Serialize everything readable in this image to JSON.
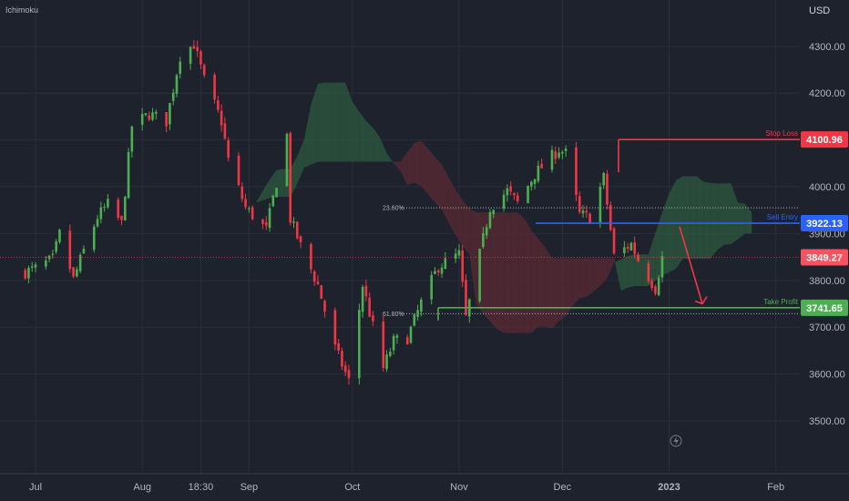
{
  "indicator": "Ichimoku",
  "currency": "USD",
  "colors": {
    "background": "#1e222d",
    "grid": "#2a2e39",
    "bull": "#4caf50",
    "bear": "#f23645",
    "cloud_bull": "#2e5a3e",
    "cloud_bear": "#5a2a33",
    "stop": "#f23645",
    "entry": "#2962ff",
    "target": "#4caf50",
    "current": "#f7525f"
  },
  "chart_data": {
    "type": "candlestick",
    "symbol_currency": "USD",
    "ylim": [
      3430,
      4360
    ],
    "y_ticks": [
      3500,
      3600,
      3700,
      3800,
      3900,
      4000,
      4100,
      4200,
      4300
    ],
    "y_tick_labels": [
      "3500.00",
      "3600.00",
      "3700.00",
      "3800.00",
      "3900.00",
      "4000.00",
      "4100.00",
      "4200.00",
      "4300.00"
    ],
    "x_labels": [
      "Jul",
      "Aug",
      "18:30",
      "Sep",
      "Oct",
      "Nov",
      "Dec",
      "2023",
      "Feb"
    ],
    "close_path": [
      [
        "Jun 28",
        3818
      ],
      [
        "Jul 1",
        3825
      ],
      [
        "Jul 6",
        3845
      ],
      [
        "Jul 8",
        3899
      ],
      [
        "Jul 12",
        3802
      ],
      [
        "Jul 15",
        3863
      ],
      [
        "Jul 19",
        3936
      ],
      [
        "Jul 22",
        3962
      ],
      [
        "Jul 26",
        3921
      ],
      [
        "Jul 29",
        4130
      ],
      [
        "Aug 3",
        4155
      ],
      [
        "Aug 8",
        4140
      ],
      [
        "Aug 12",
        4280
      ],
      [
        "Aug 16",
        4305
      ],
      [
        "Aug 19",
        4228
      ],
      [
        "Aug 24",
        4140
      ],
      [
        "Aug 26",
        4058
      ],
      [
        "Aug 31",
        3955
      ],
      [
        "Sep 6",
        3908
      ],
      [
        "Sep 12",
        4110
      ],
      [
        "Sep 13",
        3932
      ],
      [
        "Sep 16",
        3873
      ],
      [
        "Sep 21",
        3790
      ],
      [
        "Sep 26",
        3655
      ],
      [
        "Sep 30",
        3585
      ],
      [
        "Oct 4",
        3790
      ],
      [
        "Oct 10",
        3612
      ],
      [
        "Oct 13",
        3670
      ],
      [
        "Oct 17",
        3677
      ],
      [
        "Oct 21",
        3752
      ],
      [
        "Oct 26",
        3830
      ],
      [
        "Nov 1",
        3856
      ],
      [
        "Nov 3",
        3720
      ],
      [
        "Nov 10",
        3956
      ],
      [
        "Nov 15",
        3991
      ],
      [
        "Nov 18",
        3965
      ],
      [
        "Nov 23",
        4027
      ],
      [
        "Nov 30",
        4080
      ],
      [
        "Dec 2",
        4071
      ],
      [
        "Dec 6",
        3941
      ],
      [
        "Dec 9",
        3934
      ],
      [
        "Dec 13",
        4019
      ],
      [
        "Dec 16",
        3852
      ],
      [
        "Dec 21",
        3878
      ],
      [
        "Dec 23",
        3844
      ],
      [
        "Dec 28",
        3783
      ],
      [
        "Dec 30",
        3849
      ]
    ],
    "fib_levels": [
      {
        "label": "23.60%",
        "value": 3955
      },
      {
        "label": "61.80%",
        "value": 3729
      }
    ],
    "levels": [
      {
        "label": "Stop Loss",
        "value": 4100.96,
        "value_text": "4100.96",
        "role": "stop"
      },
      {
        "label": "Sell Entry",
        "value": 3922.13,
        "value_text": "3922.13",
        "role": "entry"
      },
      {
        "label": "",
        "value": 3849.27,
        "value_text": "3849.27",
        "role": "current"
      },
      {
        "label": "Take Profit",
        "value": 3741.65,
        "value_text": "3741.65",
        "role": "target"
      }
    ],
    "projection_arrow": {
      "from_value": 3915,
      "to_value": 3750
    }
  }
}
